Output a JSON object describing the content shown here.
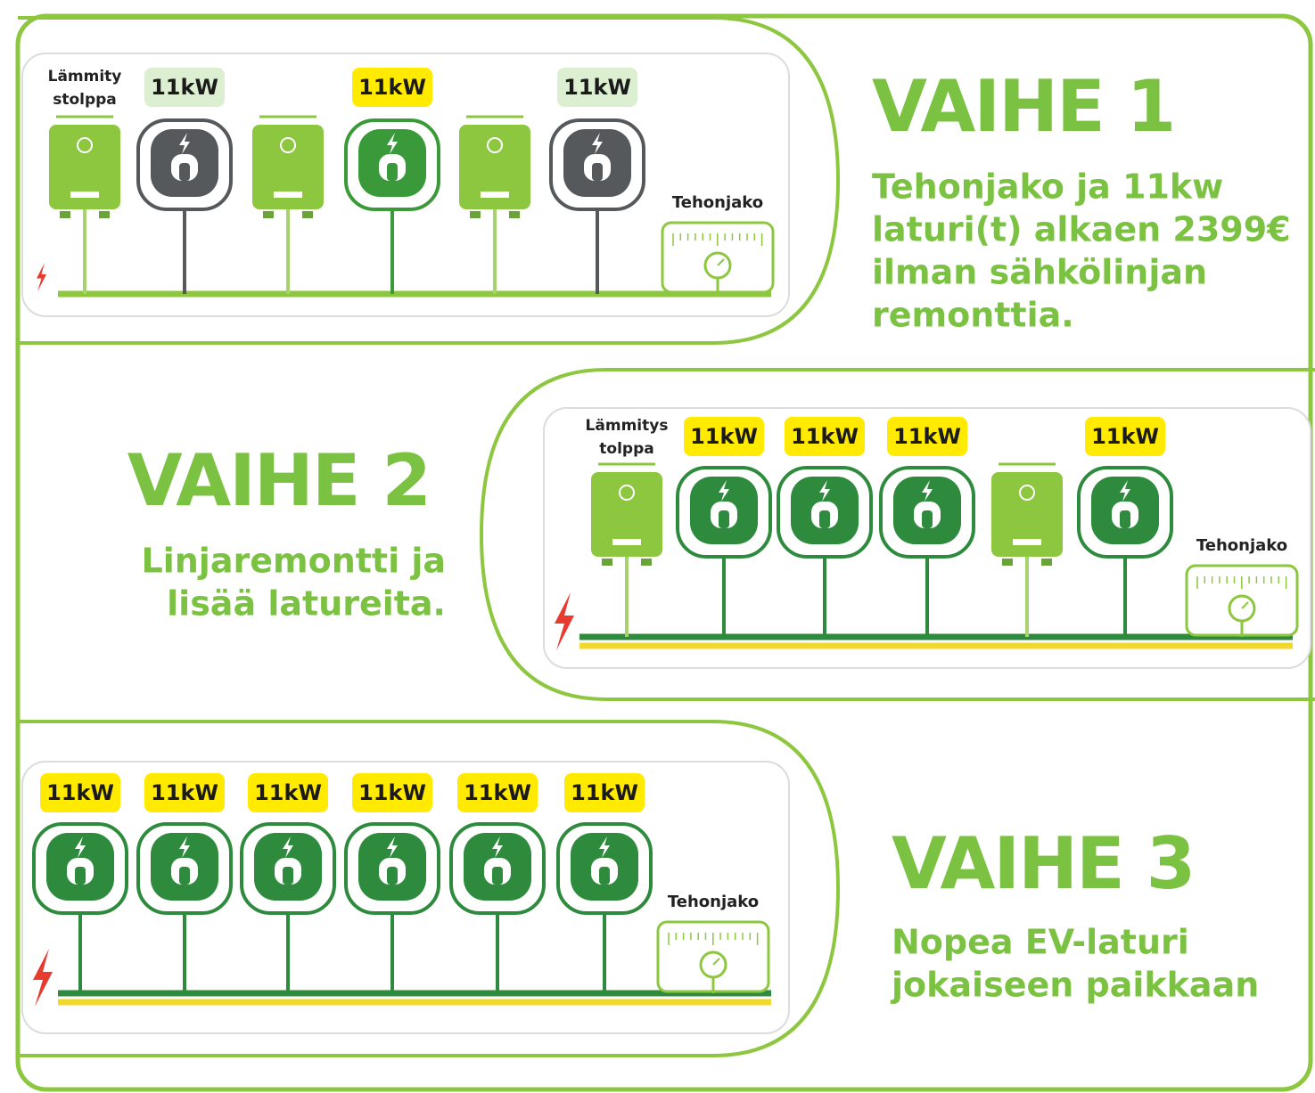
{
  "phases": [
    {
      "title": "VAIHE 1",
      "description": [
        "Tehonjako ja 11kw",
        "laturi(t) alkaen 2399€",
        "ilman sähkölinjan",
        "remonttia."
      ],
      "meter_label": "Tehonjako",
      "bus_colors": [
        "#8dc63f"
      ],
      "items": [
        {
          "type": "heater",
          "label": [
            "Lämmity",
            "stolppa"
          ]
        },
        {
          "type": "charger",
          "label": "11kW",
          "tag_color": "#dcefd0",
          "color": "#55595b"
        },
        {
          "type": "heater"
        },
        {
          "type": "charger",
          "label": "11kW",
          "tag_color": "#ffea00",
          "color": "#3a9a3a"
        },
        {
          "type": "heater"
        },
        {
          "type": "charger",
          "label": "11kW",
          "tag_color": "#dcefd0",
          "color": "#55595b"
        }
      ]
    },
    {
      "title": "VAIHE 2",
      "description": [
        "Linjaremontti ja",
        "lisää latureita."
      ],
      "meter_label": "Tehonjako",
      "bus_colors": [
        "#2e8b3e",
        "#f2d82c"
      ],
      "items": [
        {
          "type": "heater",
          "label": [
            "Lämmitys",
            "tolppa"
          ]
        },
        {
          "type": "charger",
          "label": "11kW",
          "tag_color": "#ffea00",
          "color": "#2e8b3e"
        },
        {
          "type": "charger",
          "label": "11kW",
          "tag_color": "#ffea00",
          "color": "#2e8b3e"
        },
        {
          "type": "charger",
          "label": "11kW",
          "tag_color": "#ffea00",
          "color": "#2e8b3e"
        },
        {
          "type": "heater"
        },
        {
          "type": "charger",
          "label": "11kW",
          "tag_color": "#ffea00",
          "color": "#2e8b3e"
        }
      ]
    },
    {
      "title": "VAIHE 3",
      "description": [
        "Nopea EV-laturi",
        "jokaiseen paikkaan"
      ],
      "meter_label": "Tehonjako",
      "bus_colors": [
        "#2e8b3e",
        "#f2d82c"
      ],
      "items": [
        {
          "type": "charger",
          "label": "11kW",
          "tag_color": "#ffea00",
          "color": "#2e8b3e"
        },
        {
          "type": "charger",
          "label": "11kW",
          "tag_color": "#ffea00",
          "color": "#2e8b3e"
        },
        {
          "type": "charger",
          "label": "11kW",
          "tag_color": "#ffea00",
          "color": "#2e8b3e"
        },
        {
          "type": "charger",
          "label": "11kW",
          "tag_color": "#ffea00",
          "color": "#2e8b3e"
        },
        {
          "type": "charger",
          "label": "11kW",
          "tag_color": "#ffea00",
          "color": "#2e8b3e"
        },
        {
          "type": "charger",
          "label": "11kW",
          "tag_color": "#ffea00",
          "color": "#2e8b3e"
        }
      ]
    }
  ]
}
